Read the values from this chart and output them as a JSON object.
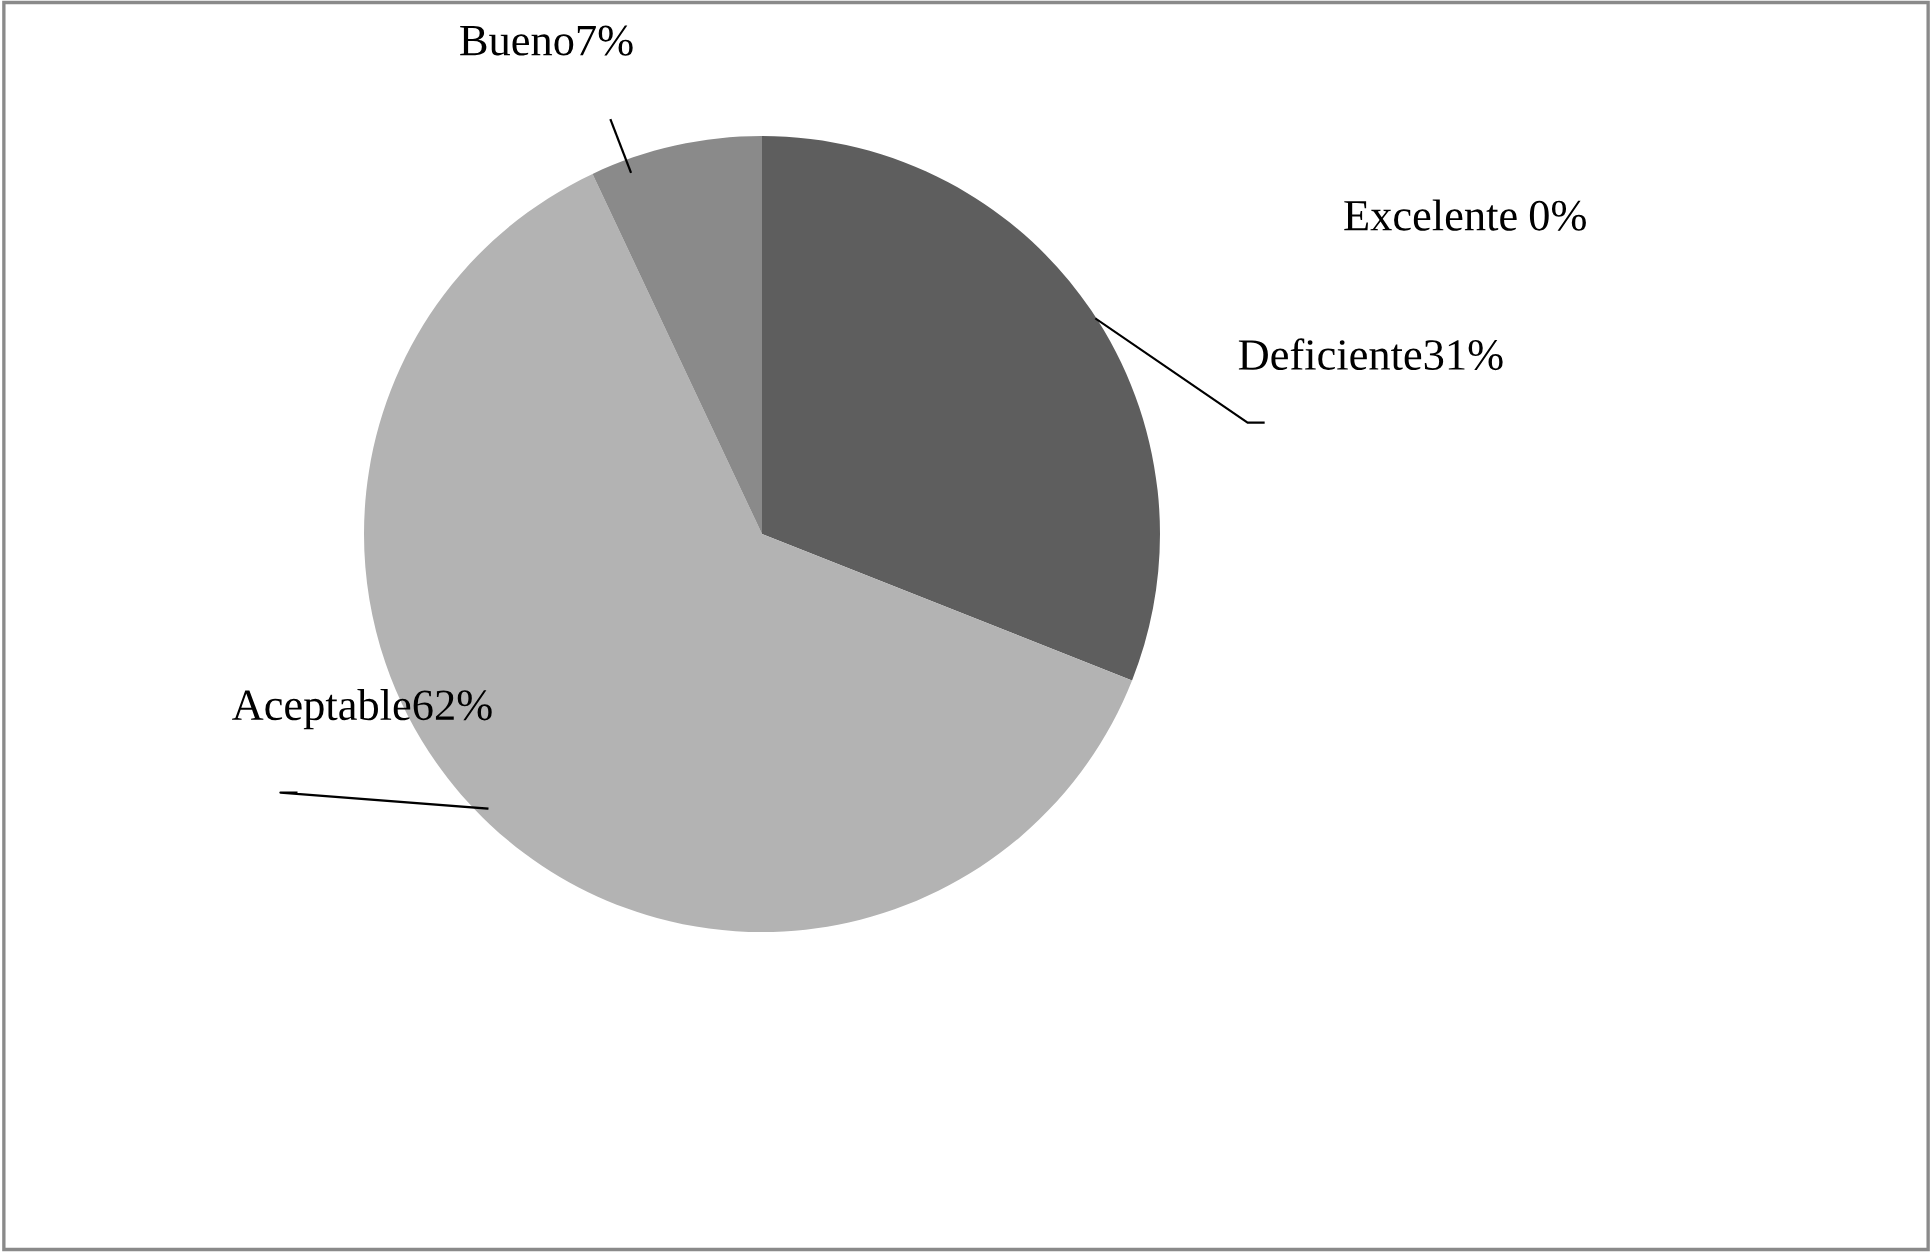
{
  "chart_data": {
    "type": "pie",
    "categories": [
      "Deficiente",
      "Aceptable",
      "Bueno",
      "Excelente"
    ],
    "values": [
      31,
      62,
      7,
      0
    ],
    "colors": [
      "#5e5e5e",
      "#b3b3b3",
      "#8a8a8a",
      "#d0d0d0"
    ],
    "value_labels": [
      "31%",
      "62%",
      "7%",
      "0%"
    ],
    "legend": false
  }
}
